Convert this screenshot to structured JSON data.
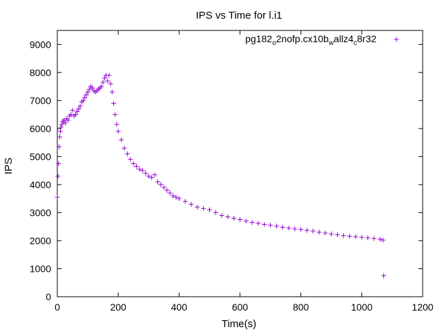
{
  "chart_data": {
    "type": "scatter",
    "title": "IPS vs Time for l.i1",
    "xlabel": "Time(s)",
    "ylabel": "IPS",
    "xlim": [
      0,
      1200
    ],
    "ylim": [
      0,
      9500
    ],
    "xticks": [
      0,
      200,
      400,
      600,
      800,
      1000,
      1200
    ],
    "yticks": [
      0,
      1000,
      2000,
      3000,
      4000,
      5000,
      6000,
      7000,
      8000,
      9000
    ],
    "grid": false,
    "legend_position": "top-right",
    "marker": "+",
    "series": [
      {
        "name_parts": [
          {
            "text": "pg182",
            "sub": false
          },
          {
            "text": "o",
            "sub": true
          },
          {
            "text": "2nofp.cx10b",
            "sub": false
          },
          {
            "text": "w",
            "sub": true
          },
          {
            "text": "allz4",
            "sub": false
          },
          {
            "text": "c",
            "sub": true
          },
          {
            "text": "8r32",
            "sub": false
          }
        ],
        "color": "#9400d3",
        "x": [
          0,
          2,
          4,
          6,
          8,
          10,
          12,
          15,
          18,
          22,
          26,
          30,
          35,
          40,
          45,
          50,
          55,
          60,
          65,
          70,
          75,
          80,
          85,
          90,
          95,
          100,
          105,
          110,
          115,
          120,
          125,
          130,
          135,
          140,
          145,
          150,
          155,
          160,
          165,
          170,
          175,
          180,
          185,
          190,
          195,
          200,
          210,
          220,
          230,
          240,
          250,
          260,
          270,
          280,
          290,
          300,
          310,
          320,
          330,
          340,
          350,
          360,
          370,
          380,
          390,
          400,
          420,
          440,
          460,
          480,
          500,
          520,
          540,
          560,
          580,
          600,
          620,
          640,
          660,
          680,
          700,
          720,
          740,
          760,
          780,
          800,
          820,
          840,
          860,
          880,
          900,
          920,
          940,
          960,
          980,
          1000,
          1020,
          1040,
          1060,
          1070,
          1072
        ],
        "y": [
          3550,
          4300,
          4750,
          5350,
          5700,
          5900,
          6050,
          6150,
          6250,
          6300,
          6200,
          6350,
          6300,
          6450,
          6500,
          6650,
          6450,
          6500,
          6600,
          6700,
          6800,
          6950,
          7000,
          7100,
          7200,
          7300,
          7400,
          7500,
          7450,
          7350,
          7300,
          7350,
          7400,
          7450,
          7500,
          7650,
          7800,
          7900,
          7700,
          7900,
          7600,
          7300,
          6900,
          6500,
          6150,
          5900,
          5600,
          5300,
          5100,
          4900,
          4750,
          4650,
          4550,
          4500,
          4400,
          4300,
          4250,
          4350,
          4100,
          4000,
          3900,
          3800,
          3700,
          3600,
          3550,
          3500,
          3400,
          3300,
          3200,
          3150,
          3100,
          3000,
          2900,
          2850,
          2800,
          2750,
          2700,
          2650,
          2620,
          2580,
          2550,
          2520,
          2480,
          2450,
          2420,
          2400,
          2370,
          2340,
          2300,
          2270,
          2240,
          2210,
          2180,
          2160,
          2140,
          2120,
          2100,
          2080,
          2050,
          2020,
          750
        ]
      }
    ]
  }
}
